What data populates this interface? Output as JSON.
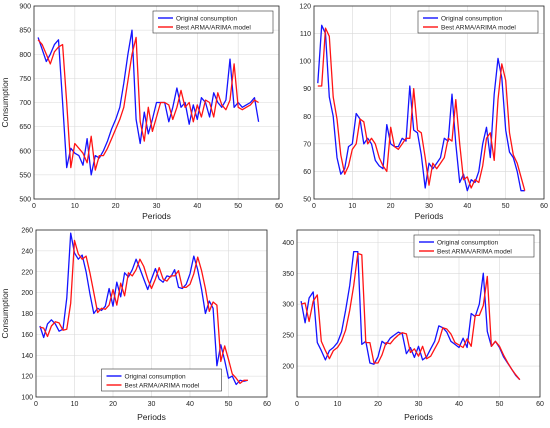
{
  "colors": {
    "original": "#1414ff",
    "model": "#ff1414",
    "grid": "#d9d9d9",
    "axis": "#262626"
  },
  "chart_data": [
    {
      "type": "line",
      "xlabel": "Periods",
      "ylabel": "Consumption",
      "xlim": [
        0,
        60
      ],
      "ylim": [
        500,
        900
      ],
      "xticks": [
        "0",
        "10",
        "20",
        "30",
        "40",
        "50",
        "60"
      ],
      "yticks": [
        "500",
        "550",
        "600",
        "650",
        "700",
        "750",
        "800",
        "850",
        "900"
      ],
      "grid": true,
      "legend": "top-right",
      "series": [
        {
          "name": "Original consumption",
          "color": "#1414ff",
          "x": [
            1,
            2,
            3,
            4,
            5,
            6,
            7,
            8,
            9,
            10,
            11,
            12,
            13,
            14,
            15,
            16,
            17,
            18,
            19,
            20,
            21,
            22,
            23,
            24,
            25,
            26,
            27,
            28,
            29,
            30,
            31,
            32,
            33,
            34,
            35,
            36,
            37,
            38,
            39,
            40,
            41,
            42,
            43,
            44,
            45,
            46,
            47,
            48,
            49,
            50,
            51,
            52,
            53,
            54,
            55
          ],
          "values": [
            835,
            810,
            785,
            800,
            820,
            830,
            700,
            565,
            605,
            595,
            590,
            570,
            625,
            550,
            590,
            585,
            600,
            620,
            645,
            665,
            690,
            740,
            800,
            850,
            665,
            615,
            680,
            635,
            665,
            700,
            700,
            700,
            660,
            690,
            730,
            690,
            700,
            655,
            695,
            665,
            710,
            700,
            670,
            720,
            700,
            690,
            705,
            790,
            690,
            700,
            690,
            695,
            700,
            710,
            660
          ]
        },
        {
          "name": "Best ARMA/ARIMA model",
          "color": "#ff1414",
          "x": [
            1,
            2,
            3,
            4,
            5,
            6,
            7,
            8,
            9,
            10,
            11,
            12,
            13,
            14,
            15,
            16,
            17,
            18,
            19,
            20,
            21,
            22,
            23,
            24,
            25,
            26,
            27,
            28,
            29,
            30,
            31,
            32,
            33,
            34,
            35,
            36,
            37,
            38,
            39,
            40,
            41,
            42,
            43,
            44,
            45,
            46,
            47,
            48,
            49,
            50,
            51,
            52,
            53,
            54,
            55
          ],
          "values": [
            830,
            820,
            800,
            780,
            805,
            815,
            820,
            700,
            565,
            615,
            605,
            595,
            575,
            630,
            560,
            590,
            590,
            605,
            625,
            645,
            665,
            690,
            745,
            800,
            835,
            660,
            620,
            690,
            640,
            670,
            700,
            700,
            695,
            665,
            690,
            725,
            690,
            700,
            660,
            695,
            670,
            705,
            700,
            670,
            720,
            695,
            685,
            705,
            780,
            690,
            685,
            690,
            695,
            705,
            700
          ]
        }
      ]
    },
    {
      "type": "line",
      "xlabel": "Periods",
      "ylabel": "",
      "xlim": [
        0,
        60
      ],
      "ylim": [
        50,
        120
      ],
      "xticks": [
        "0",
        "10",
        "20",
        "30",
        "40",
        "50",
        "60"
      ],
      "yticks": [
        "50",
        "60",
        "70",
        "80",
        "90",
        "100",
        "110",
        "120"
      ],
      "grid": true,
      "legend": "top-right",
      "series": [
        {
          "name": "Original consumption",
          "color": "#1414ff",
          "x": [
            1,
            2,
            3,
            4,
            5,
            6,
            7,
            8,
            9,
            10,
            11,
            12,
            13,
            14,
            15,
            16,
            17,
            18,
            19,
            20,
            21,
            22,
            23,
            24,
            25,
            26,
            27,
            28,
            29,
            30,
            31,
            32,
            33,
            34,
            35,
            36,
            37,
            38,
            39,
            40,
            41,
            42,
            43,
            44,
            45,
            46,
            47,
            48,
            49,
            50,
            51,
            52,
            53,
            54,
            55
          ],
          "values": [
            92,
            113,
            110,
            87,
            80,
            65,
            59,
            61,
            69,
            70,
            81,
            79,
            70,
            72,
            70,
            64,
            62,
            61,
            77,
            70,
            69,
            69,
            72,
            71,
            91,
            75,
            74,
            66,
            54,
            63,
            61,
            63,
            65,
            72,
            71,
            88,
            70,
            56,
            59,
            53,
            57,
            56,
            60,
            70,
            76,
            65,
            88,
            101,
            94,
            75,
            67,
            65,
            60,
            53,
            53
          ]
        },
        {
          "name": "Best ARMA/ARIMA model",
          "color": "#ff1414",
          "x": [
            1,
            2,
            3,
            4,
            5,
            6,
            7,
            8,
            9,
            10,
            11,
            12,
            13,
            14,
            15,
            16,
            17,
            18,
            19,
            20,
            21,
            22,
            23,
            24,
            25,
            26,
            27,
            28,
            29,
            30,
            31,
            32,
            33,
            34,
            35,
            36,
            37,
            38,
            39,
            40,
            41,
            42,
            43,
            44,
            45,
            46,
            47,
            48,
            49,
            50,
            51,
            52,
            53,
            54,
            55
          ],
          "values": [
            91,
            91,
            112,
            109,
            87,
            79,
            66,
            59,
            62,
            68,
            70,
            79,
            78,
            70,
            72,
            70,
            65,
            62,
            60,
            76,
            69,
            68,
            70,
            72,
            72,
            90,
            75,
            74,
            65,
            55,
            63,
            61,
            63,
            65,
            72,
            71,
            86,
            70,
            57,
            58,
            54,
            57,
            56,
            62,
            72,
            74,
            64,
            86,
            99,
            93,
            74,
            66,
            63,
            58,
            53
          ]
        }
      ]
    },
    {
      "type": "line",
      "xlabel": "Periods",
      "ylabel": "Consumption",
      "xlim": [
        0,
        60
      ],
      "ylim": [
        100,
        260
      ],
      "xticks": [
        "0",
        "10",
        "20",
        "30",
        "40",
        "50",
        "60"
      ],
      "yticks": [
        "100",
        "120",
        "140",
        "160",
        "180",
        "200",
        "220",
        "240",
        "260"
      ],
      "grid": true,
      "legend": "bottom-center",
      "series": [
        {
          "name": "Original consumption",
          "color": "#1414ff",
          "x": [
            1,
            2,
            3,
            4,
            5,
            6,
            7,
            8,
            9,
            10,
            11,
            12,
            13,
            14,
            15,
            16,
            17,
            18,
            19,
            20,
            21,
            22,
            23,
            24,
            25,
            26,
            27,
            28,
            29,
            30,
            31,
            32,
            33,
            34,
            35,
            36,
            37,
            38,
            39,
            40,
            41,
            42,
            43,
            44,
            45,
            46,
            47,
            48,
            49,
            50,
            51,
            52,
            53,
            54,
            55
          ],
          "values": [
            168,
            157,
            170,
            174,
            170,
            163,
            165,
            195,
            257,
            238,
            232,
            236,
            220,
            199,
            180,
            185,
            183,
            187,
            204,
            187,
            210,
            196,
            219,
            215,
            222,
            232,
            223,
            213,
            203,
            213,
            223,
            213,
            210,
            216,
            215,
            222,
            205,
            204,
            208,
            218,
            235,
            222,
            203,
            180,
            192,
            185,
            130,
            150,
            135,
            118,
            120,
            112,
            116,
            115,
            116
          ]
        },
        {
          "name": "Best ARMA/ARIMA model",
          "color": "#ff1414",
          "x": [
            1,
            2,
            3,
            4,
            5,
            6,
            7,
            8,
            9,
            10,
            11,
            12,
            13,
            14,
            15,
            16,
            17,
            18,
            19,
            20,
            21,
            22,
            23,
            24,
            25,
            26,
            27,
            28,
            29,
            30,
            31,
            32,
            33,
            34,
            35,
            36,
            37,
            38,
            39,
            40,
            41,
            42,
            43,
            44,
            45,
            46,
            47,
            48,
            49,
            50,
            51,
            52,
            53,
            54,
            55
          ],
          "values": [
            167,
            166,
            158,
            168,
            172,
            171,
            164,
            165,
            190,
            250,
            237,
            232,
            235,
            219,
            200,
            181,
            185,
            184,
            188,
            203,
            188,
            209,
            197,
            219,
            216,
            222,
            232,
            225,
            213,
            204,
            213,
            224,
            213,
            211,
            216,
            216,
            221,
            205,
            205,
            208,
            218,
            234,
            221,
            204,
            182,
            191,
            188,
            134,
            149,
            136,
            122,
            118,
            113,
            116,
            116
          ]
        }
      ]
    },
    {
      "type": "line",
      "xlabel": "Periods",
      "ylabel": "",
      "xlim": [
        0,
        60
      ],
      "ylim": [
        150,
        420
      ],
      "xticks": [
        "0",
        "10",
        "20",
        "30",
        "40",
        "50",
        "60"
      ],
      "yticks": [
        "200",
        "250",
        "300",
        "350",
        "400"
      ],
      "grid": true,
      "legend": "top-right",
      "series": [
        {
          "name": "Original consumption",
          "color": "#1414ff",
          "x": [
            1,
            2,
            3,
            4,
            5,
            6,
            7,
            8,
            9,
            10,
            11,
            12,
            13,
            14,
            15,
            16,
            17,
            18,
            19,
            20,
            21,
            22,
            23,
            24,
            25,
            26,
            27,
            28,
            29,
            30,
            31,
            32,
            33,
            34,
            35,
            36,
            37,
            38,
            39,
            40,
            41,
            42,
            43,
            44,
            45,
            46,
            47,
            48,
            49,
            50,
            51,
            52,
            53,
            54,
            55
          ],
          "values": [
            305,
            270,
            310,
            320,
            238,
            225,
            210,
            225,
            230,
            238,
            255,
            290,
            330,
            385,
            385,
            235,
            240,
            205,
            203,
            215,
            240,
            235,
            245,
            250,
            255,
            252,
            220,
            230,
            214,
            232,
            210,
            215,
            228,
            240,
            265,
            262,
            255,
            240,
            235,
            230,
            245,
            230,
            285,
            280,
            300,
            350,
            256,
            232,
            240,
            230,
            215,
            205,
            195,
            185,
            178
          ]
        },
        {
          "name": "Best ARMA/ARIMA model",
          "color": "#ff1414",
          "x": [
            1,
            2,
            3,
            4,
            5,
            6,
            7,
            8,
            9,
            10,
            11,
            12,
            13,
            14,
            15,
            16,
            17,
            18,
            19,
            20,
            21,
            22,
            23,
            24,
            25,
            26,
            27,
            28,
            29,
            30,
            31,
            32,
            33,
            34,
            35,
            36,
            37,
            38,
            39,
            40,
            41,
            42,
            43,
            44,
            45,
            46,
            47,
            48,
            49,
            50,
            51,
            52,
            53,
            54,
            55
          ],
          "values": [
            300,
            302,
            272,
            305,
            315,
            240,
            225,
            212,
            225,
            230,
            240,
            258,
            290,
            330,
            382,
            380,
            238,
            238,
            205,
            205,
            218,
            238,
            236,
            244,
            250,
            254,
            252,
            222,
            228,
            216,
            232,
            212,
            216,
            228,
            240,
            262,
            260,
            252,
            238,
            234,
            230,
            244,
            232,
            282,
            282,
            298,
            345,
            232,
            240,
            232,
            218,
            206,
            195,
            186,
            178
          ]
        }
      ]
    }
  ]
}
